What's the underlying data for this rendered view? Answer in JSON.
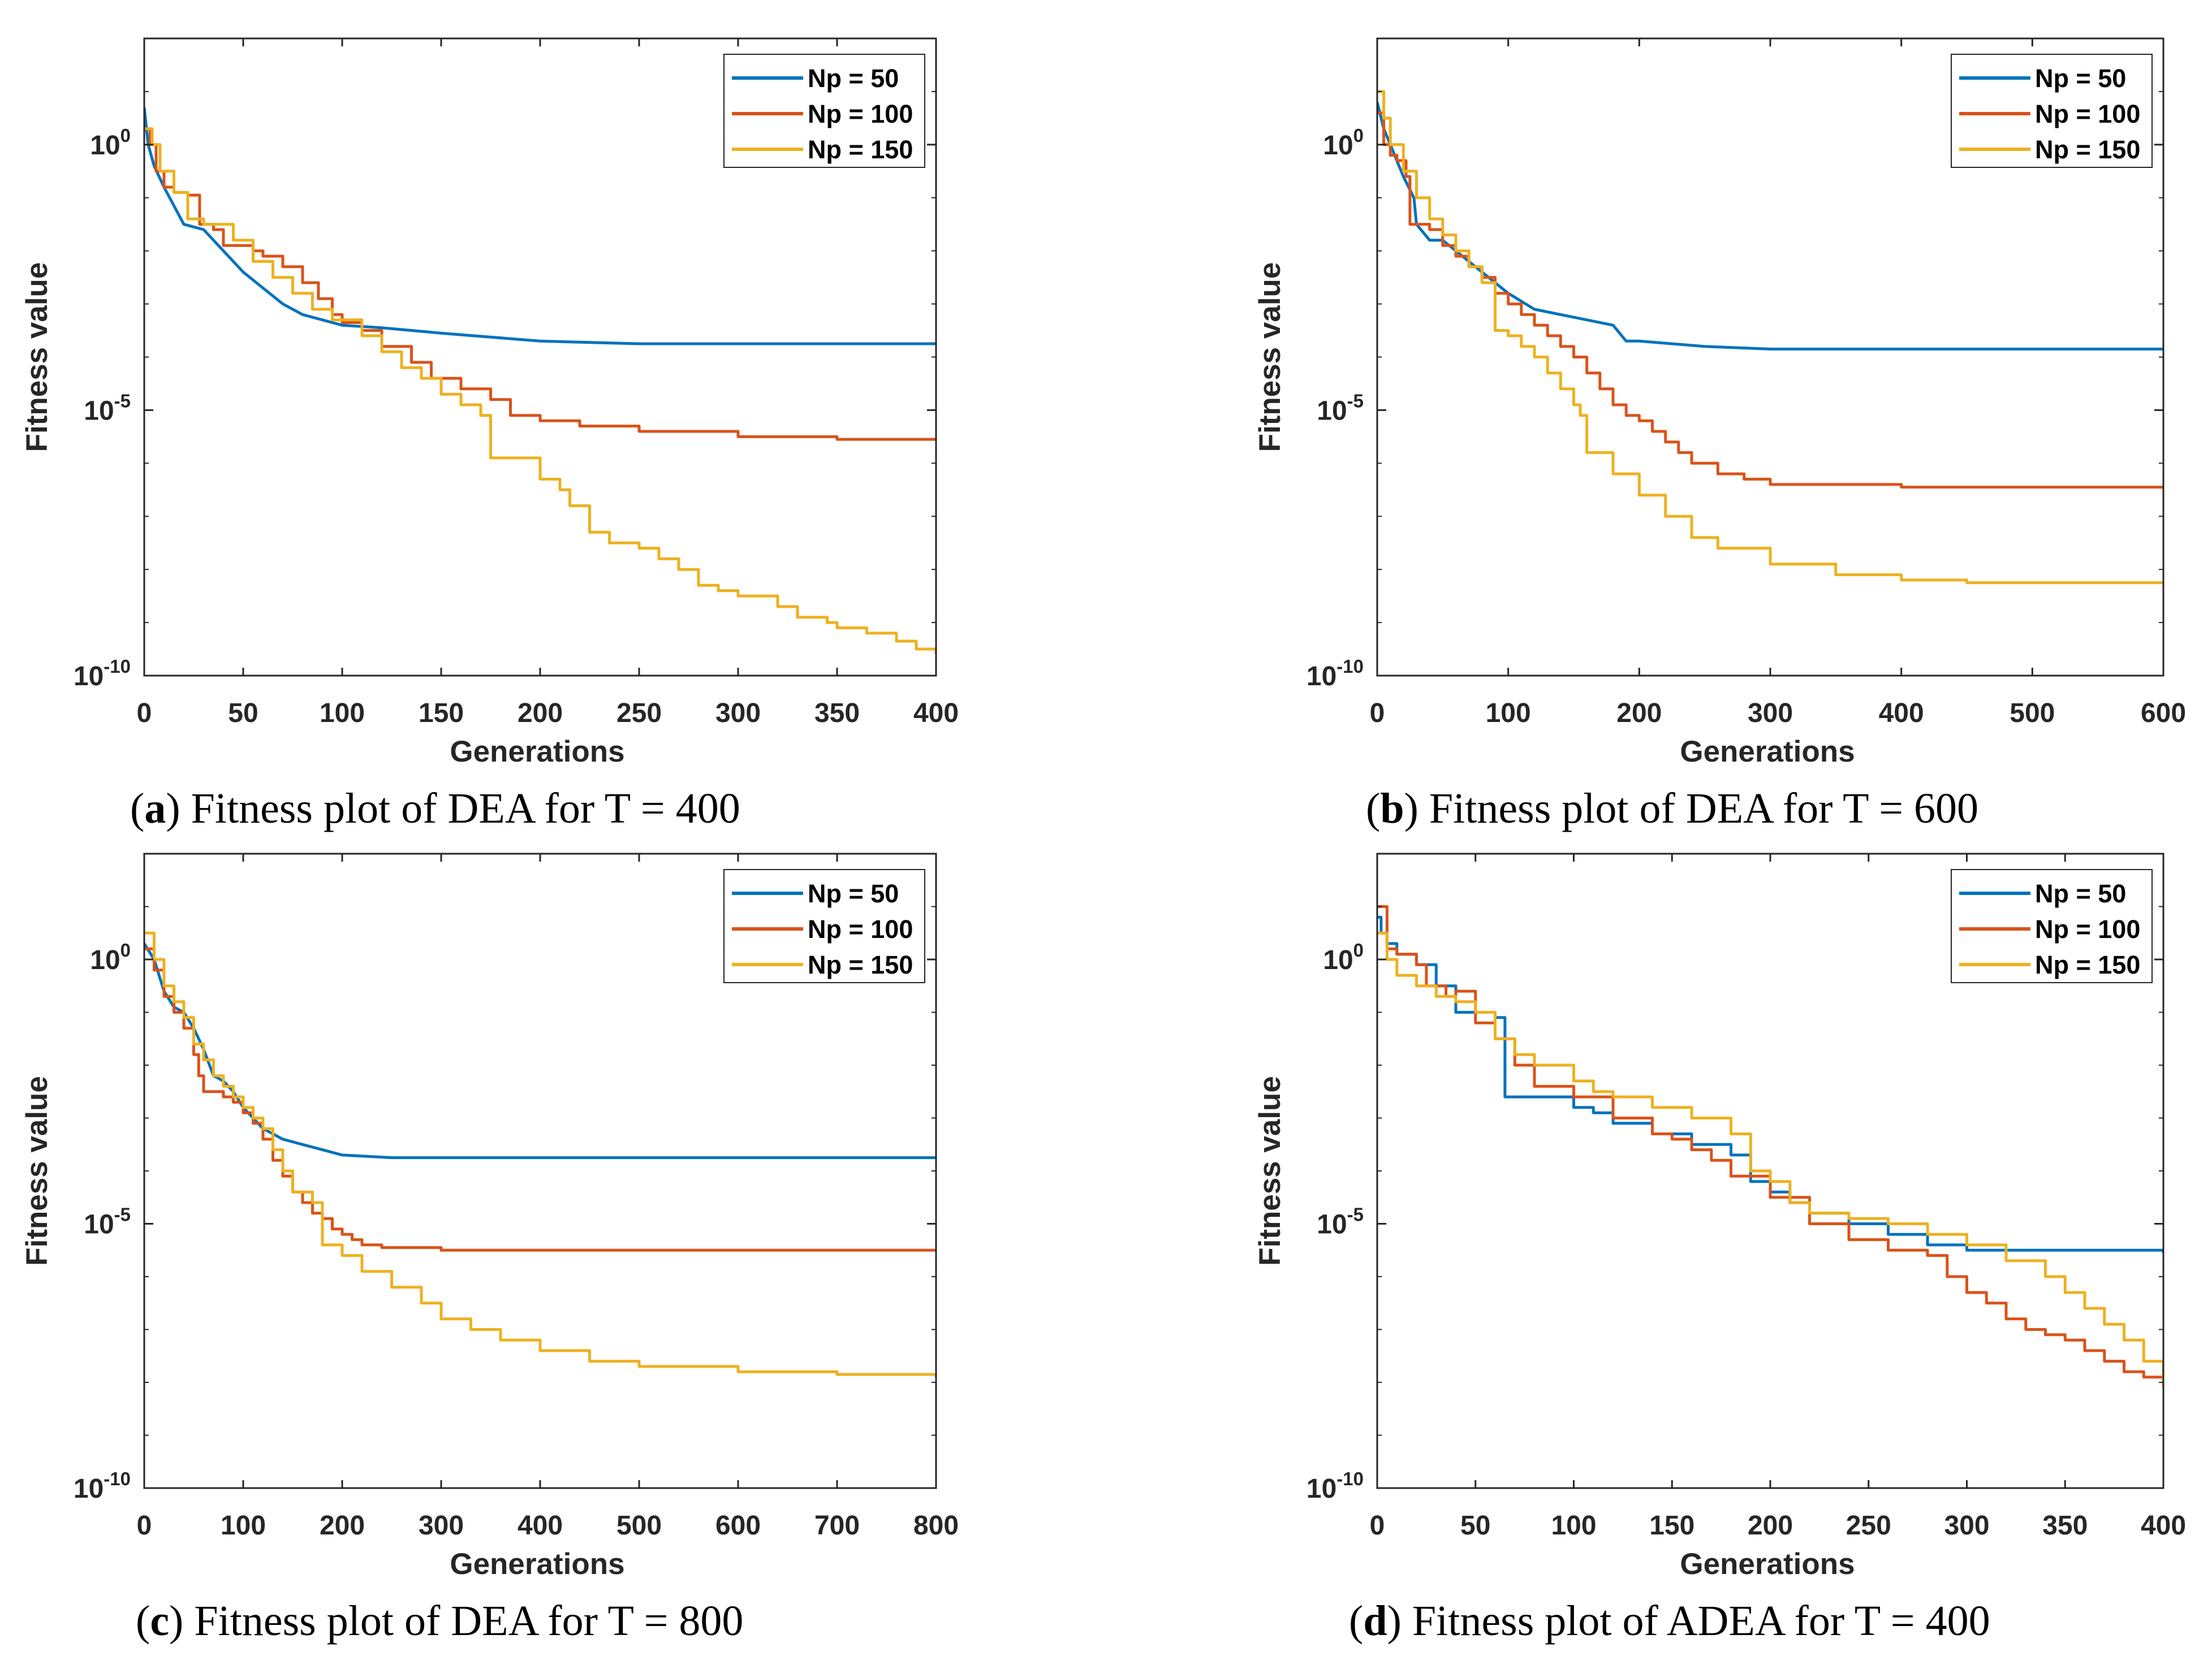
{
  "colors": {
    "np50": "#0072BD",
    "np100": "#D95319",
    "np150": "#EDB120"
  },
  "legend_labels": [
    "Np = 50",
    "Np = 100",
    "Np = 150"
  ],
  "chart_data": [
    {
      "type": "line",
      "caption_letter": "a",
      "caption_text": " Fitness plot of DEA for T = 400",
      "xlabel": "Generations",
      "ylabel": "Fitness value",
      "yscale": "log",
      "xlim": [
        0,
        400
      ],
      "xticks": [
        0,
        50,
        100,
        150,
        200,
        250,
        300,
        350,
        400
      ],
      "ylim_log10": [
        -10,
        2
      ],
      "yticks_log10": [
        -10,
        -5,
        0
      ],
      "ytick_labels": [
        {
          "base": "10",
          "exp": "-10"
        },
        {
          "base": "10",
          "exp": "-5"
        },
        {
          "base": "10",
          "exp": "0"
        }
      ],
      "legend_position": "top-right",
      "series": [
        {
          "name": "Np = 50",
          "step": false,
          "x": [
            0,
            2,
            5,
            10,
            20,
            30,
            40,
            50,
            60,
            70,
            80,
            90,
            100,
            120,
            150,
            200,
            250,
            300,
            350,
            400
          ],
          "log10y": [
            0.7,
            0.0,
            -0.4,
            -0.8,
            -1.5,
            -1.6,
            -2.0,
            -2.4,
            -2.7,
            -3.0,
            -3.2,
            -3.3,
            -3.4,
            -3.45,
            -3.55,
            -3.7,
            -3.75,
            -3.75,
            -3.75,
            -3.75
          ]
        },
        {
          "name": "Np = 100",
          "step": true,
          "x": [
            0,
            3,
            6,
            10,
            15,
            22,
            28,
            35,
            40,
            50,
            55,
            60,
            70,
            80,
            88,
            95,
            100,
            110,
            120,
            135,
            145,
            160,
            175,
            185,
            200,
            220,
            250,
            300,
            350,
            400
          ],
          "log10y": [
            0.3,
            0.0,
            -0.5,
            -0.8,
            -0.9,
            -0.95,
            -1.5,
            -1.6,
            -1.9,
            -1.9,
            -2.0,
            -2.1,
            -2.3,
            -2.6,
            -2.9,
            -3.2,
            -3.35,
            -3.5,
            -3.8,
            -4.1,
            -4.4,
            -4.6,
            -4.8,
            -5.1,
            -5.2,
            -5.3,
            -5.4,
            -5.5,
            -5.55,
            -5.55
          ]
        },
        {
          "name": "Np = 150",
          "step": true,
          "x": [
            0,
            4,
            8,
            15,
            22,
            30,
            40,
            45,
            55,
            65,
            75,
            85,
            95,
            100,
            110,
            120,
            130,
            140,
            150,
            160,
            170,
            175,
            200,
            210,
            215,
            225,
            235,
            250,
            260,
            270,
            280,
            290,
            300,
            320,
            330,
            345,
            350,
            365,
            380,
            390,
            400
          ],
          "log10y": [
            0.3,
            0.0,
            -0.5,
            -0.9,
            -1.4,
            -1.5,
            -1.5,
            -1.8,
            -2.2,
            -2.5,
            -2.8,
            -3.1,
            -3.3,
            -3.3,
            -3.6,
            -3.9,
            -4.2,
            -4.4,
            -4.7,
            -4.9,
            -5.1,
            -5.9,
            -6.3,
            -6.5,
            -6.8,
            -7.3,
            -7.5,
            -7.6,
            -7.8,
            -8.0,
            -8.3,
            -8.4,
            -8.5,
            -8.7,
            -8.9,
            -9.0,
            -9.1,
            -9.2,
            -9.35,
            -9.5,
            -9.6
          ]
        }
      ]
    },
    {
      "type": "line",
      "caption_letter": "b",
      "caption_text": " Fitness plot of DEA for T = 600",
      "xlabel": "Generations",
      "ylabel": "Fitness value",
      "yscale": "log",
      "xlim": [
        0,
        600
      ],
      "xticks": [
        0,
        100,
        200,
        300,
        400,
        500,
        600
      ],
      "ylim_log10": [
        -10,
        2
      ],
      "yticks_log10": [
        -10,
        -5,
        0
      ],
      "ytick_labels": [
        {
          "base": "10",
          "exp": "-10"
        },
        {
          "base": "10",
          "exp": "-5"
        },
        {
          "base": "10",
          "exp": "0"
        }
      ],
      "legend_position": "top-right",
      "series": [
        {
          "name": "Np = 50",
          "step": false,
          "x": [
            0,
            5,
            10,
            20,
            28,
            30,
            40,
            50,
            60,
            70,
            80,
            90,
            100,
            120,
            140,
            160,
            180,
            190,
            200,
            250,
            300,
            400,
            500,
            600
          ],
          "log10y": [
            0.8,
            0.3,
            0.0,
            -0.6,
            -1.0,
            -1.5,
            -1.8,
            -1.8,
            -2.0,
            -2.2,
            -2.4,
            -2.6,
            -2.8,
            -3.1,
            -3.2,
            -3.3,
            -3.4,
            -3.7,
            -3.7,
            -3.8,
            -3.85,
            -3.85,
            -3.85,
            -3.85
          ]
        },
        {
          "name": "Np = 100",
          "step": true,
          "x": [
            0,
            5,
            10,
            15,
            22,
            25,
            30,
            40,
            50,
            60,
            70,
            80,
            90,
            100,
            110,
            120,
            130,
            140,
            150,
            160,
            170,
            180,
            190,
            200,
            210,
            220,
            230,
            240,
            260,
            280,
            300,
            400,
            500,
            600
          ],
          "log10y": [
            0.6,
            0.0,
            -0.2,
            -0.3,
            -0.6,
            -1.5,
            -1.5,
            -1.6,
            -1.9,
            -2.1,
            -2.3,
            -2.5,
            -2.8,
            -3.0,
            -3.2,
            -3.4,
            -3.6,
            -3.8,
            -4.0,
            -4.3,
            -4.6,
            -4.9,
            -5.1,
            -5.2,
            -5.4,
            -5.6,
            -5.8,
            -6.0,
            -6.2,
            -6.3,
            -6.4,
            -6.45,
            -6.45,
            -6.45
          ]
        },
        {
          "name": "Np = 150",
          "step": true,
          "x": [
            0,
            5,
            10,
            20,
            30,
            40,
            50,
            60,
            70,
            80,
            90,
            100,
            110,
            120,
            130,
            140,
            150,
            155,
            160,
            180,
            200,
            220,
            240,
            260,
            300,
            350,
            400,
            450,
            500,
            600
          ],
          "log10y": [
            1.0,
            0.5,
            0.0,
            -0.5,
            -1.0,
            -1.4,
            -1.7,
            -2.0,
            -2.3,
            -2.6,
            -3.5,
            -3.6,
            -3.8,
            -4.0,
            -4.3,
            -4.6,
            -4.9,
            -5.1,
            -5.8,
            -6.2,
            -6.6,
            -7.0,
            -7.4,
            -7.6,
            -7.9,
            -8.1,
            -8.2,
            -8.25,
            -8.25,
            -8.25
          ]
        }
      ]
    },
    {
      "type": "line",
      "caption_letter": "c",
      "caption_text": " Fitness plot of DEA for T = 800",
      "xlabel": "Generations",
      "ylabel": "Fitness value",
      "yscale": "log",
      "xlim": [
        0,
        800
      ],
      "xticks": [
        0,
        100,
        200,
        300,
        400,
        500,
        600,
        700,
        800
      ],
      "ylim_log10": [
        -10,
        2
      ],
      "yticks_log10": [
        -10,
        -5,
        0
      ],
      "ytick_labels": [
        {
          "base": "10",
          "exp": "-10"
        },
        {
          "base": "10",
          "exp": "-5"
        },
        {
          "base": "10",
          "exp": "0"
        }
      ],
      "legend_position": "top-right",
      "series": [
        {
          "name": "Np = 50",
          "step": false,
          "x": [
            0,
            10,
            20,
            30,
            40,
            50,
            60,
            70,
            80,
            90,
            100,
            110,
            120,
            140,
            160,
            180,
            200,
            250,
            300,
            400,
            500,
            600,
            700,
            800
          ],
          "log10y": [
            0.3,
            0.0,
            -0.6,
            -0.9,
            -1.0,
            -1.3,
            -1.7,
            -2.2,
            -2.3,
            -2.5,
            -2.8,
            -3.0,
            -3.2,
            -3.4,
            -3.5,
            -3.6,
            -3.7,
            -3.75,
            -3.75,
            -3.75,
            -3.75,
            -3.75,
            -3.75,
            -3.75
          ]
        },
        {
          "name": "Np = 100",
          "step": true,
          "x": [
            0,
            10,
            20,
            30,
            40,
            50,
            55,
            60,
            70,
            80,
            90,
            100,
            110,
            120,
            130,
            140,
            150,
            160,
            170,
            180,
            190,
            200,
            210,
            220,
            240,
            300,
            400,
            500,
            600,
            700,
            800
          ],
          "log10y": [
            0.2,
            -0.2,
            -0.7,
            -1.0,
            -1.3,
            -1.8,
            -2.2,
            -2.5,
            -2.5,
            -2.6,
            -2.7,
            -2.9,
            -3.1,
            -3.4,
            -3.8,
            -4.1,
            -4.4,
            -4.6,
            -4.8,
            -4.9,
            -5.1,
            -5.2,
            -5.3,
            -5.4,
            -5.45,
            -5.5,
            -5.5,
            -5.5,
            -5.5,
            -5.5,
            -5.5
          ]
        },
        {
          "name": "Np = 150",
          "step": true,
          "x": [
            0,
            10,
            20,
            30,
            40,
            50,
            60,
            70,
            80,
            90,
            100,
            110,
            120,
            130,
            140,
            150,
            170,
            180,
            200,
            220,
            250,
            280,
            300,
            330,
            360,
            400,
            450,
            500,
            600,
            700,
            800
          ],
          "log10y": [
            0.5,
            0.0,
            -0.5,
            -0.8,
            -1.1,
            -1.6,
            -1.9,
            -2.2,
            -2.4,
            -2.6,
            -2.8,
            -3.0,
            -3.2,
            -3.6,
            -4.0,
            -4.4,
            -4.6,
            -5.4,
            -5.6,
            -5.9,
            -6.2,
            -6.5,
            -6.8,
            -7.0,
            -7.2,
            -7.4,
            -7.6,
            -7.7,
            -7.8,
            -7.85,
            -7.9
          ]
        }
      ]
    },
    {
      "type": "line",
      "caption_letter": "d",
      "caption_text": " Fitness plot of ADEA for T = 400",
      "xlabel": "Generations",
      "ylabel": "Fitness value",
      "yscale": "log",
      "xlim": [
        0,
        400
      ],
      "xticks": [
        0,
        50,
        100,
        150,
        200,
        250,
        300,
        350,
        400
      ],
      "ylim_log10": [
        -10,
        2
      ],
      "yticks_log10": [
        -10,
        -5,
        0
      ],
      "ytick_labels": [
        {
          "base": "10",
          "exp": "-10"
        },
        {
          "base": "10",
          "exp": "-5"
        },
        {
          "base": "10",
          "exp": "0"
        }
      ],
      "legend_position": "top-right",
      "series": [
        {
          "name": "Np = 50",
          "step": true,
          "x": [
            0,
            2,
            5,
            10,
            20,
            30,
            40,
            60,
            65,
            80,
            100,
            110,
            120,
            140,
            160,
            180,
            190,
            200,
            210,
            220,
            240,
            260,
            280,
            300,
            350,
            400
          ],
          "log10y": [
            0.8,
            0.5,
            0.3,
            0.1,
            -0.1,
            -0.5,
            -1.0,
            -1.1,
            -2.6,
            -2.6,
            -2.8,
            -2.9,
            -3.1,
            -3.3,
            -3.5,
            -3.7,
            -4.2,
            -4.4,
            -4.6,
            -4.8,
            -5.0,
            -5.2,
            -5.4,
            -5.5,
            -5.5,
            -5.55
          ]
        },
        {
          "name": "Np = 100",
          "step": true,
          "x": [
            0,
            5,
            10,
            20,
            25,
            35,
            40,
            50,
            60,
            70,
            80,
            100,
            120,
            140,
            150,
            160,
            170,
            180,
            200,
            220,
            240,
            260,
            280,
            290,
            300,
            310,
            320,
            330,
            340,
            350,
            360,
            370,
            380,
            390,
            400
          ],
          "log10y": [
            1.0,
            0.2,
            0.1,
            -0.1,
            -0.5,
            -0.7,
            -0.6,
            -1.2,
            -1.5,
            -2.0,
            -2.4,
            -2.6,
            -3.0,
            -3.3,
            -3.4,
            -3.6,
            -3.8,
            -4.1,
            -4.5,
            -5.0,
            -5.3,
            -5.5,
            -5.6,
            -6.0,
            -6.3,
            -6.5,
            -6.8,
            -7.0,
            -7.1,
            -7.2,
            -7.4,
            -7.6,
            -7.8,
            -7.9,
            -8.0
          ]
        },
        {
          "name": "Np = 150",
          "step": true,
          "x": [
            0,
            5,
            10,
            20,
            30,
            40,
            50,
            60,
            70,
            80,
            100,
            110,
            120,
            140,
            160,
            180,
            190,
            200,
            210,
            220,
            240,
            260,
            280,
            300,
            320,
            340,
            350,
            360,
            370,
            380,
            390,
            400
          ],
          "log10y": [
            0.5,
            0.0,
            -0.3,
            -0.5,
            -0.7,
            -0.8,
            -1.0,
            -1.5,
            -1.8,
            -2.0,
            -2.3,
            -2.5,
            -2.6,
            -2.8,
            -3.0,
            -3.3,
            -4.0,
            -4.2,
            -4.6,
            -4.8,
            -4.9,
            -5.0,
            -5.2,
            -5.4,
            -5.7,
            -6.0,
            -6.3,
            -6.6,
            -6.9,
            -7.2,
            -7.6,
            -8.1
          ]
        }
      ]
    }
  ]
}
